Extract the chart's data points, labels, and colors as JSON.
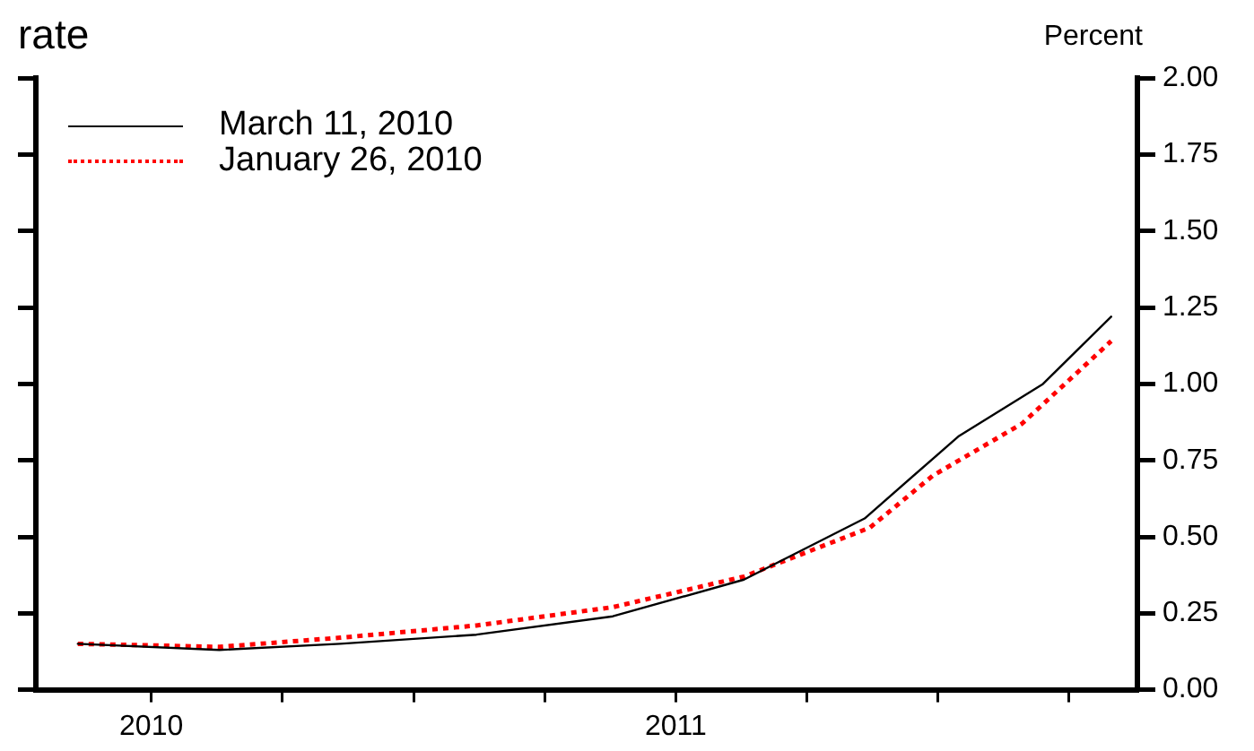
{
  "chart_data": {
    "type": "line",
    "title": "rate",
    "ylabel": "Percent",
    "x": [
      2010.36,
      2010.63,
      2010.86,
      2011.12,
      2011.38,
      2011.63,
      2011.86,
      2012.04,
      2012.2,
      2012.33
    ],
    "series": [
      {
        "name": "March 11, 2010",
        "color": "#000000",
        "line_style": "solid",
        "values": [
          0.15,
          0.13,
          0.15,
          0.18,
          0.24,
          0.36,
          0.56,
          0.83,
          1.0,
          1.22
        ]
      },
      {
        "name": "January 26, 2010",
        "color": "#ff0000",
        "line_style": "dotted",
        "x": [
          2010.36,
          2010.63,
          2010.86,
          2011.12,
          2011.38,
          2011.63,
          2011.87,
          2011.99,
          2012.16,
          2012.33
        ],
        "values": [
          0.15,
          0.14,
          0.17,
          0.21,
          0.27,
          0.37,
          0.53,
          0.7,
          0.87,
          1.14
        ]
      }
    ],
    "xlim": [
      2010.28,
      2012.38
    ],
    "xticks": [
      {
        "value": 2010.5,
        "label": "2010"
      },
      {
        "value": 2010.75,
        "label": null
      },
      {
        "value": 2011,
        "label": null
      },
      {
        "value": 2011.25,
        "label": null
      },
      {
        "value": 2011.5,
        "label": "2011"
      },
      {
        "value": 2011.75,
        "label": null
      },
      {
        "value": 2012,
        "label": null
      },
      {
        "value": 2012.25,
        "label": null
      }
    ],
    "ylim": [
      0,
      2
    ],
    "yticks": [
      {
        "value": 0,
        "label": "0.00"
      },
      {
        "value": 0.25,
        "label": "0.25"
      },
      {
        "value": 0.5,
        "label": "0.50"
      },
      {
        "value": 0.75,
        "label": "0.75"
      },
      {
        "value": 1,
        "label": "1.00"
      },
      {
        "value": 1.25,
        "label": "1.25"
      },
      {
        "value": 1.5,
        "label": "1.50"
      },
      {
        "value": 1.75,
        "label": "1.75"
      },
      {
        "value": 2,
        "label": "2.00"
      }
    ],
    "grid": false,
    "legend": "top left",
    "marker": "none"
  }
}
